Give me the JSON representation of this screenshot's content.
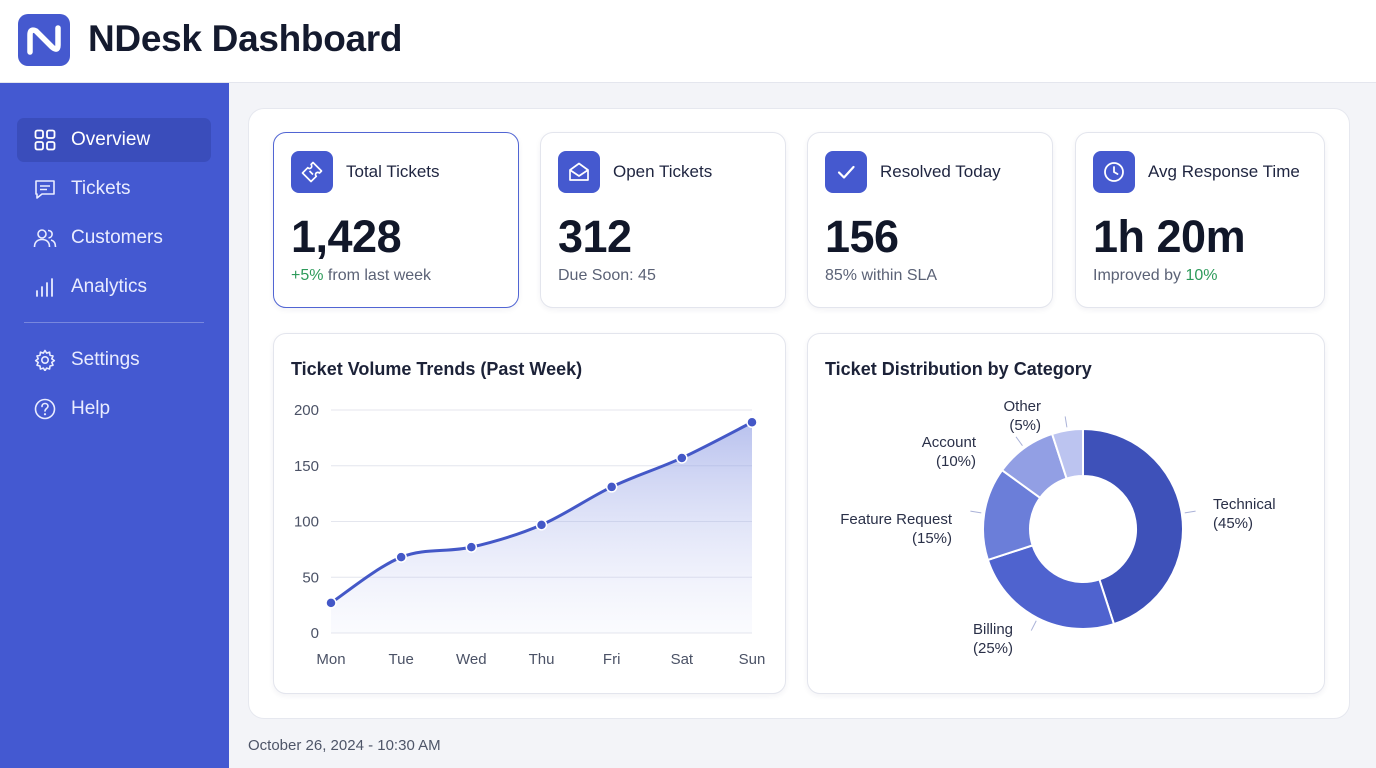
{
  "app": {
    "title": "NDesk Dashboard",
    "logo_icon": "n-wave-logo"
  },
  "sidebar": {
    "items": [
      {
        "label": "Overview",
        "icon": "grid-icon",
        "active": true
      },
      {
        "label": "Tickets",
        "icon": "chat-icon",
        "active": false
      },
      {
        "label": "Customers",
        "icon": "users-icon",
        "active": false
      },
      {
        "label": "Analytics",
        "icon": "bar-chart-icon",
        "active": false
      },
      {
        "label": "Settings",
        "icon": "gear-icon",
        "active": false
      },
      {
        "label": "Help",
        "icon": "help-icon",
        "active": false
      }
    ]
  },
  "stats": [
    {
      "label": "Total Tickets",
      "value": "1,428",
      "sub_highlight": "+5%",
      "sub_text": " from last week",
      "icon": "ticket-icon"
    },
    {
      "label": "Open Tickets",
      "value": "312",
      "sub_text": "Due Soon: 45",
      "icon": "envelope-open-icon"
    },
    {
      "label": "Resolved Today",
      "value": "156",
      "sub_text": "85% within SLA",
      "icon": "check-icon"
    },
    {
      "label": "Avg Response Time",
      "value": "1h 20m",
      "sub_text": "Improved by ",
      "sub_highlight": "10%",
      "icon": "clock-icon"
    }
  ],
  "chart_data": [
    {
      "type": "area",
      "title": "Ticket Volume Trends (Past Week)",
      "categories": [
        "Mon",
        "Tue",
        "Wed",
        "Thu",
        "Fri",
        "Sat",
        "Sun"
      ],
      "values": [
        27,
        68,
        77,
        97,
        131,
        157,
        189
      ],
      "yticks": [
        0,
        50,
        100,
        150,
        200
      ],
      "ylim": [
        0,
        200
      ],
      "grid": true,
      "color": "#4458c7"
    },
    {
      "type": "pie",
      "title": "Ticket Distribution by Category",
      "slices": [
        {
          "name": "Technical",
          "value": 45,
          "label": "(45%)",
          "color": "#3e51b9"
        },
        {
          "name": "Billing",
          "value": 25,
          "label": "(25%)",
          "color": "#4f63cf"
        },
        {
          "name": "Feature Request",
          "value": 15,
          "label": "(15%)",
          "color": "#6b7ed9"
        },
        {
          "name": "Account",
          "value": 10,
          "label": "(10%)",
          "color": "#929fe4"
        },
        {
          "name": "Other",
          "value": 5,
          "label": "(5%)",
          "color": "#bcc4f0"
        }
      ]
    }
  ],
  "footer": {
    "timestamp": "October 26, 2024 - 10:30 AM"
  }
}
